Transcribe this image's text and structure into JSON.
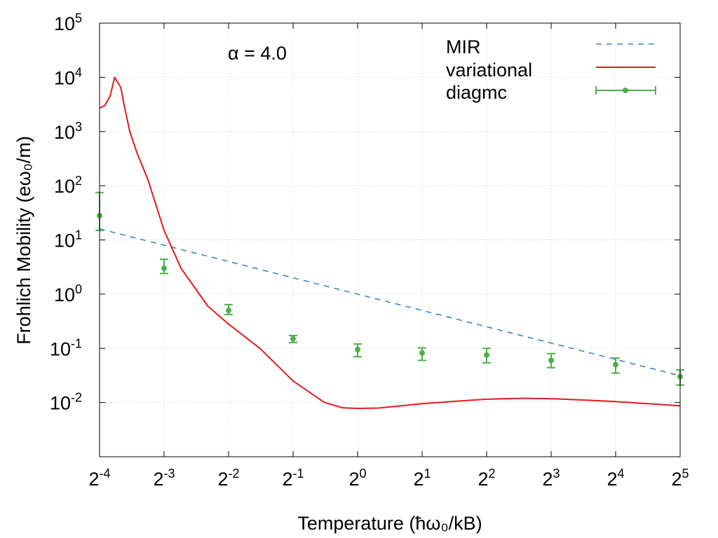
{
  "chart_data": {
    "type": "line",
    "xlabel": "Temperature (ħω₀/kB)",
    "ylabel": "Frohlich Mobility (eω₀/m)",
    "annotation": "α = 4.0",
    "x_scale": "log2",
    "y_scale": "log10",
    "xlim": [
      0.0625,
      32
    ],
    "ylim": [
      0.001,
      100000
    ],
    "x_ticks": [
      {
        "base": "2",
        "exp": "-4"
      },
      {
        "base": "2",
        "exp": "-3"
      },
      {
        "base": "2",
        "exp": "-2"
      },
      {
        "base": "2",
        "exp": "-1"
      },
      {
        "base": "2",
        "exp": "0"
      },
      {
        "base": "2",
        "exp": "1"
      },
      {
        "base": "2",
        "exp": "2"
      },
      {
        "base": "2",
        "exp": "3"
      },
      {
        "base": "2",
        "exp": "4"
      },
      {
        "base": "2",
        "exp": "5"
      }
    ],
    "y_ticks": [
      {
        "base": "10",
        "exp": "-2"
      },
      {
        "base": "10",
        "exp": "-1"
      },
      {
        "base": "10",
        "exp": "0"
      },
      {
        "base": "10",
        "exp": "1"
      },
      {
        "base": "10",
        "exp": "2"
      },
      {
        "base": "10",
        "exp": "3"
      },
      {
        "base": "10",
        "exp": "4"
      },
      {
        "base": "10",
        "exp": "5"
      }
    ],
    "grid": true,
    "legend_position": "top-right",
    "series": [
      {
        "name": "MIR",
        "style": "dashed",
        "color": "#3a86c4",
        "x": [
          0.0625,
          32
        ],
        "y": [
          16,
          0.03125
        ]
      },
      {
        "name": "variational",
        "style": "solid",
        "color": "#e41a1c",
        "x": [
          0.0625,
          0.066,
          0.07,
          0.0735,
          0.0785,
          0.0815,
          0.0865,
          0.0935,
          0.105,
          0.125,
          0.15,
          0.2,
          0.25,
          0.35,
          0.5,
          0.7,
          0.85,
          1.0,
          1.25,
          1.5,
          2.0,
          3.0,
          4.0,
          5.0,
          6.0,
          8.0,
          12.0,
          16.0,
          32.0
        ],
        "y": [
          2700,
          3000,
          4500,
          10000,
          6500,
          3000,
          1000,
          400,
          130,
          15,
          3,
          0.6,
          0.28,
          0.1,
          0.025,
          0.01,
          0.008,
          0.0078,
          0.0079,
          0.0085,
          0.0095,
          0.0107,
          0.0115,
          0.0118,
          0.012,
          0.0118,
          0.011,
          0.0104,
          0.0087
        ]
      },
      {
        "name": "diagmc",
        "style": "points-errorbars",
        "color": "#4daf4a",
        "x": [
          0.0625,
          0.125,
          0.25,
          0.5,
          1,
          2,
          4,
          8,
          16,
          32
        ],
        "y": [
          28,
          3.0,
          0.5,
          0.15,
          0.095,
          0.082,
          0.075,
          0.06,
          0.05,
          0.03
        ],
        "y_low": [
          15,
          2.4,
          0.42,
          0.128,
          0.07,
          0.06,
          0.054,
          0.044,
          0.035,
          0.021
        ],
        "y_high": [
          75,
          4.4,
          0.64,
          0.172,
          0.12,
          0.102,
          0.1,
          0.08,
          0.066,
          0.04
        ]
      }
    ]
  }
}
